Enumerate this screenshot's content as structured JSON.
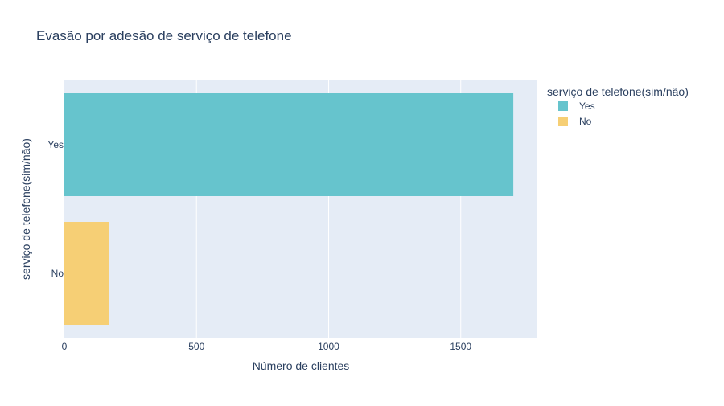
{
  "chart_data": {
    "type": "bar",
    "orientation": "horizontal",
    "title": "Evasão por adesão de serviço de telefone",
    "xlabel": "Número de clientes",
    "ylabel": "serviço de telefone(sim/não)",
    "xlim": [
      0,
      1790
    ],
    "x_ticks": [
      0,
      500,
      1000,
      1500
    ],
    "x_tick_labels": [
      "0",
      "500",
      "1000",
      "1500"
    ],
    "categories": [
      "Yes",
      "No"
    ],
    "values": [
      1699,
      170
    ],
    "colors": [
      "#66c4cd",
      "#f6cf75"
    ],
    "grid": true,
    "plot_background": "#e5ecf6",
    "legend": {
      "title": "serviço de telefone(sim/não)",
      "placement": "right",
      "entries": [
        "Yes",
        "No"
      ]
    }
  }
}
